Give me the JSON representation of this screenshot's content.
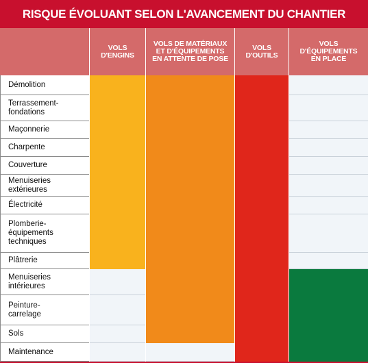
{
  "title": "RISQUE ÉVOLUANT SELON  L'AVANCEMENT DU CHANTIER",
  "columns": [
    "VOLS\nD'ENGINS",
    "VOLS DE MATÉRIAUX\nET D'ÉQUIPEMENTS\nEN ATTENTE DE POSE",
    "VOLS\nD'OUTILS",
    "VOLS\nD'ÉQUIPEMENTS\nEN PLACE"
  ],
  "rows": [
    {
      "label": "Démolition",
      "cells": [
        "yellow",
        "orange",
        "red",
        "blank"
      ]
    },
    {
      "label": "Terrassement-\nfondations",
      "cells": [
        "yellow",
        "orange",
        "red",
        "blank"
      ]
    },
    {
      "label": "Maçonnerie",
      "cells": [
        "yellow",
        "orange",
        "red",
        "blank"
      ]
    },
    {
      "label": "Charpente",
      "cells": [
        "yellow",
        "orange",
        "red",
        "blank"
      ]
    },
    {
      "label": "Couverture",
      "cells": [
        "yellow",
        "orange",
        "red",
        "blank"
      ]
    },
    {
      "label": "Menuiseries\nextérieures",
      "cells": [
        "yellow",
        "orange",
        "red",
        "blank"
      ]
    },
    {
      "label": "Électricité",
      "cells": [
        "yellow",
        "orange",
        "red",
        "blank"
      ]
    },
    {
      "label": "Plomberie-\néquipements\ntechniques",
      "cells": [
        "yellow",
        "orange",
        "red",
        "blank"
      ]
    },
    {
      "label": "Plâtrerie",
      "cells": [
        "yellow",
        "orange",
        "red",
        "blank"
      ]
    },
    {
      "label": "Menuiseries\nintérieures",
      "cells": [
        "blank",
        "orange",
        "red",
        "green"
      ]
    },
    {
      "label": "Peinture-\ncarrelage",
      "cells": [
        "blank",
        "orange",
        "red",
        "green"
      ]
    },
    {
      "label": "Sols",
      "cells": [
        "blank",
        "orange",
        "red",
        "green"
      ]
    },
    {
      "label": "Maintenance",
      "cells": [
        "blank",
        "blank",
        "red",
        "green"
      ]
    }
  ],
  "colors": {
    "yellow": "#f9b21d",
    "orange": "#f18a1a",
    "red": "#e0261b",
    "green": "#0a7a3e",
    "blank": "#f1f5f9",
    "title_bg": "#c8102e",
    "header_bg": "#d46a6a"
  }
}
